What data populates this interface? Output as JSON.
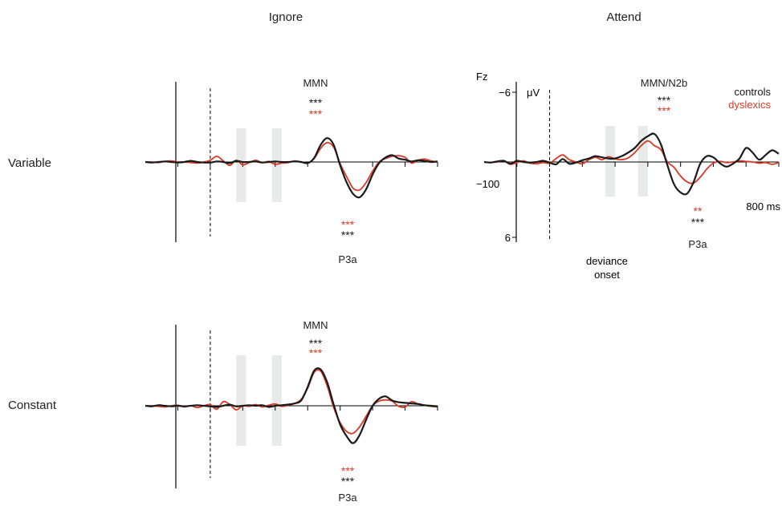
{
  "colors": {
    "controls": "#1a1a1a",
    "dyslexics": "#d93a26",
    "shade": "#e8e9e9",
    "axis": "#000000"
  },
  "columns": {
    "ignore": "Ignore",
    "attend": "Attend"
  },
  "rows": {
    "variable": "Variable",
    "constant": "Constant"
  },
  "legend": {
    "controls": "controls",
    "dyslexics": "dyslexics"
  },
  "attend_axis": {
    "channel": "Fz",
    "unit": "μV",
    "y_top_tick": "−6",
    "y_bottom_tick": "6",
    "x_left_tick": "−100",
    "x_right_tick": "800 ms"
  },
  "deviance_label": {
    "line1": "deviance",
    "line2": "onset"
  },
  "chart_data": [
    {
      "type": "line",
      "panel": "Ignore / Variable",
      "x": [
        -100,
        -80,
        -60,
        -40,
        -20,
        0,
        20,
        40,
        60,
        80,
        100,
        120,
        140,
        160,
        180,
        200,
        220,
        240,
        260,
        280,
        300,
        320,
        340,
        360,
        380,
        400,
        420,
        440,
        460,
        480,
        500,
        520,
        540,
        560,
        580,
        600,
        620,
        640,
        660,
        680,
        700,
        720,
        740,
        760,
        780,
        800
      ],
      "y_axis": "inverted (negative up)",
      "ylim": [
        -6,
        6
      ],
      "series": [
        {
          "name": "controls",
          "values": [
            0,
            0.1,
            0,
            -0.1,
            0,
            0.1,
            0,
            -0.2,
            0,
            0.1,
            0.1,
            -0.1,
            0,
            0.2,
            -0.2,
            0,
            0,
            -0.1,
            0.1,
            0,
            -0.1,
            0,
            0,
            -0.1,
            0,
            0.2,
            -0.7,
            -3.0,
            -4.2,
            -3.0,
            0.6,
            3.6,
            5.6,
            6.2,
            4.8,
            2.2,
            0.2,
            -0.8,
            -1.2,
            -0.6,
            -0.4,
            -0.1,
            -0.3,
            -0.2,
            0,
            -0.1
          ]
        },
        {
          "name": "dyslexics",
          "values": [
            0,
            0,
            0.1,
            -0.1,
            -0.2,
            0,
            0,
            0.1,
            0.2,
            0,
            -0.3,
            -1.0,
            -0.2,
            0.6,
            -0.3,
            0.5,
            0.1,
            -0.3,
            0.1,
            -0.1,
            0.4,
            0.2,
            0.1,
            -0.2,
            0,
            0.2,
            -0.6,
            -2.4,
            -3.4,
            -2.6,
            0.3,
            2.6,
            4.6,
            4.9,
            3.6,
            1.6,
            0,
            -0.6,
            -1.0,
            -1.1,
            -0.8,
            0.2,
            -0.3,
            -0.5,
            -0.2,
            0
          ]
        }
      ],
      "shaded_windows_ms": [
        [
          180,
          210
        ],
        [
          290,
          320
        ]
      ],
      "annotations": [
        {
          "text": "MMN"
        },
        {
          "text": "***",
          "series": "controls",
          "window": "MMN"
        },
        {
          "text": "***",
          "series": "dyslexics",
          "window": "MMN"
        },
        {
          "text": "***",
          "series": "dyslexics",
          "window": "P3a"
        },
        {
          "text": "***",
          "series": "controls",
          "window": "P3a"
        },
        {
          "text": "P3a"
        }
      ]
    },
    {
      "type": "line",
      "panel": "Attend / Variable",
      "x": [
        -100,
        -80,
        -60,
        -40,
        -20,
        0,
        20,
        40,
        60,
        80,
        100,
        120,
        140,
        160,
        180,
        200,
        220,
        240,
        260,
        280,
        300,
        320,
        340,
        360,
        380,
        400,
        420,
        440,
        460,
        480,
        500,
        520,
        540,
        560,
        580,
        600,
        620,
        640,
        660,
        680,
        700,
        720,
        740,
        760,
        780,
        800
      ],
      "y_axis": "inverted (negative up)",
      "ylim": [
        -6,
        6
      ],
      "series": [
        {
          "name": "controls",
          "values": [
            0,
            0.1,
            -0.1,
            -0.2,
            0.3,
            -0.2,
            0,
            0.1,
            0,
            -0.2,
            0.1,
            0.4,
            -0.5,
            0.3,
            0.1,
            -0.3,
            -0.6,
            -1.0,
            -0.8,
            -0.6,
            -0.6,
            -1.0,
            -1.6,
            -2.4,
            -3.6,
            -4.4,
            -4.8,
            -3.0,
            0.6,
            3.8,
            5.2,
            5.4,
            3.4,
            0.3,
            -1.0,
            -0.8,
            0.2,
            0.8,
            0.3,
            -0.6,
            -2.4,
            -1.6,
            -0.4,
            -1.2,
            -2.0,
            -1.4
          ]
        },
        {
          "name": "dyslexics",
          "values": [
            0,
            0.1,
            0,
            -0.2,
            0.4,
            0.1,
            -0.2,
            0.2,
            0.3,
            0.1,
            0.2,
            -0.6,
            -1.2,
            -0.4,
            0,
            0.3,
            -0.4,
            -0.8,
            -0.4,
            -0.9,
            -0.5,
            -0.4,
            -0.7,
            -1.6,
            -2.8,
            -3.6,
            -2.8,
            -2.1,
            0,
            0.9,
            2.4,
            3.4,
            3.6,
            2.6,
            1.2,
            0.2,
            -0.1,
            0.1,
            0,
            -0.2,
            -0.1,
            0,
            0.2,
            0.1,
            0.4,
            0.1
          ]
        }
      ],
      "shaded_windows_ms": [
        [
          270,
          300
        ],
        [
          370,
          400
        ]
      ],
      "annotations": [
        {
          "text": "MMN/N2b"
        },
        {
          "text": "***",
          "series": "controls",
          "window": "MMN/N2b"
        },
        {
          "text": "***",
          "series": "dyslexics",
          "window": "MMN/N2b"
        },
        {
          "text": "**",
          "series": "dyslexics",
          "window": "P3a"
        },
        {
          "text": "***",
          "series": "controls",
          "window": "P3a"
        },
        {
          "text": "P3a"
        }
      ]
    },
    {
      "type": "line",
      "panel": "Ignore / Constant",
      "x": [
        -100,
        -80,
        -60,
        -40,
        -20,
        0,
        20,
        40,
        60,
        80,
        100,
        120,
        140,
        160,
        180,
        200,
        220,
        240,
        260,
        280,
        300,
        320,
        340,
        360,
        380,
        400,
        420,
        440,
        460,
        480,
        500,
        520,
        540,
        560,
        580,
        600,
        620,
        640,
        660,
        680,
        700,
        720,
        740,
        760,
        780,
        800
      ],
      "y_axis": "inverted (negative up)",
      "ylim": [
        -6,
        6
      ],
      "series": [
        {
          "name": "controls",
          "values": [
            0,
            0.1,
            -0.1,
            0,
            0.1,
            0,
            0.1,
            0,
            -0.1,
            0,
            0.1,
            0.2,
            0,
            -0.2,
            0.1,
            0,
            -0.1,
            0,
            -0.1,
            0.2,
            0,
            -0.1,
            -0.2,
            -0.4,
            -0.9,
            -3.2,
            -6.0,
            -6.2,
            -4.0,
            -0.2,
            3.2,
            5.2,
            6.4,
            5.0,
            2.4,
            0,
            -1.2,
            -1.6,
            -0.9,
            -0.6,
            -0.5,
            -0.4,
            -0.3,
            -0.1,
            0,
            0.1
          ]
        },
        {
          "name": "dyslexics",
          "values": [
            0,
            0,
            0.1,
            0.2,
            0,
            -0.1,
            0.2,
            0,
            0.3,
            0,
            -0.2,
            0.6,
            -0.7,
            -0.2,
            0.7,
            0,
            0.1,
            -0.2,
            0.2,
            -0.1,
            -0.3,
            0.1,
            -0.1,
            -0.4,
            -1.1,
            -3.0,
            -5.7,
            -5.9,
            -3.4,
            0.3,
            2.9,
            4.4,
            4.7,
            3.6,
            1.8,
            0,
            -0.8,
            -1.0,
            -0.8,
            0.1,
            0.2,
            -0.7,
            -0.3,
            -0.1,
            0.1,
            0.2
          ]
        }
      ],
      "shaded_windows_ms": [
        [
          180,
          210
        ],
        [
          290,
          320
        ]
      ],
      "annotations": [
        {
          "text": "MMN"
        },
        {
          "text": "***",
          "series": "controls",
          "window": "MMN"
        },
        {
          "text": "***",
          "series": "dyslexics",
          "window": "MMN"
        },
        {
          "text": "***",
          "series": "dyslexics",
          "window": "P3a"
        },
        {
          "text": "***",
          "series": "controls",
          "window": "P3a"
        },
        {
          "text": "P3a"
        }
      ]
    }
  ]
}
